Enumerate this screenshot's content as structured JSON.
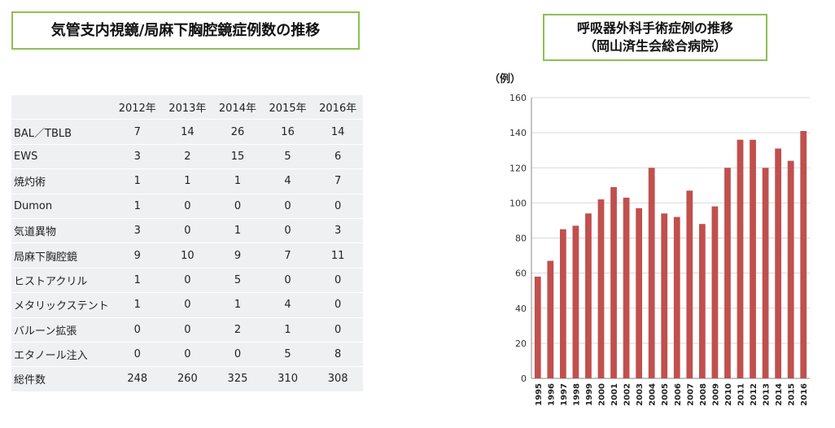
{
  "left_title": "気管支内視鏡/局麻下胸腔鏡症例数の推移",
  "right_title": {
    "line1": "呼吸器外科手術症例の推移",
    "line2": "（岡山済生会総合病院）"
  },
  "table": {
    "columns": [
      "2012年",
      "2013年",
      "2014年",
      "2015年",
      "2016年"
    ],
    "rows": [
      {
        "label": "BAL／TBLB",
        "values": [
          "7",
          "14",
          "26",
          "16",
          "14"
        ]
      },
      {
        "label": "EWS",
        "values": [
          "3",
          "2",
          "15",
          "5",
          "6"
        ]
      },
      {
        "label": "焼灼術",
        "values": [
          "1",
          "1",
          "1",
          "4",
          "7"
        ]
      },
      {
        "label": "Dumon",
        "values": [
          "1",
          "0",
          "0",
          "0",
          "0"
        ]
      },
      {
        "label": "気道異物",
        "values": [
          "3",
          "0",
          "1",
          "0",
          "3"
        ]
      },
      {
        "label": "局麻下胸腔鏡",
        "values": [
          "9",
          "10",
          "9",
          "7",
          "11"
        ]
      },
      {
        "label": "ヒストアクリル",
        "values": [
          "1",
          "0",
          "5",
          "0",
          "0"
        ]
      },
      {
        "label": "メタリックステント",
        "values": [
          "1",
          "0",
          "1",
          "4",
          "0"
        ]
      },
      {
        "label": "バルーン拡張",
        "values": [
          "0",
          "0",
          "2",
          "1",
          "0"
        ]
      },
      {
        "label": "エタノール注入",
        "values": [
          "0",
          "0",
          "0",
          "5",
          "8"
        ]
      },
      {
        "label": "総件数",
        "values": [
          "248",
          "260",
          "325",
          "310",
          "308"
        ]
      }
    ]
  },
  "chart_data": {
    "type": "bar",
    "title": "呼吸器外科手術症例の推移 （岡山済生会総合病院）",
    "ylabel": "（例）",
    "xlabel": "",
    "categories": [
      "1995",
      "1996",
      "1997",
      "1998",
      "1999",
      "2000",
      "2001",
      "2002",
      "2003",
      "2004",
      "2005",
      "2006",
      "2007",
      "2008",
      "2009",
      "2010",
      "2011",
      "2012",
      "2013",
      "2014",
      "2015",
      "2016"
    ],
    "values": [
      58,
      67,
      85,
      87,
      94,
      102,
      109,
      103,
      97,
      120,
      94,
      92,
      107,
      88,
      98,
      120,
      136,
      136,
      120,
      131,
      124,
      141
    ],
    "ylim": [
      0,
      160
    ],
    "yticks": [
      0,
      20,
      40,
      60,
      80,
      100,
      120,
      140,
      160
    ],
    "grid": true,
    "legend": "none",
    "bar_color": "#c0504d"
  }
}
